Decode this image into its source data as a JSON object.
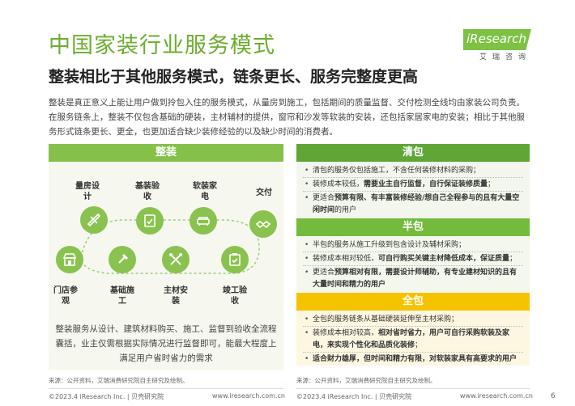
{
  "header": {
    "title": "中国家装行业服务模式",
    "subtitle": "整装相比于其他服务模式，链条更长、服务完整度更高"
  },
  "logo": {
    "text": "iResearch",
    "cn": "艾瑞咨询"
  },
  "intro": "整装是真正意义上能让用户做到拎包入住的服务模式，从量房到施工，包括期间的质量监督、交付检测全线均由家装公司负责。在服务链条上，整装不仅包含基础的硬装，主材辅材的提供，窗帘和沙发等软装的安装，还包括家居家电的安装；相比于其他服务形式链条更长、更全，也更加适合缺少装修经验的以及缺少时间的消费者。",
  "zhengzhuang": {
    "header": "整装",
    "top_nodes": [
      {
        "label": "量房设计",
        "icon": "ruler-pencil-icon"
      },
      {
        "label": "基装验收",
        "icon": "checklist-icon"
      },
      {
        "label": "软装家电",
        "icon": "sofa-icon"
      },
      {
        "label": "交付",
        "icon": "handshake-icon"
      }
    ],
    "bottom_nodes": [
      {
        "label": "门店参观",
        "icon": "store-icon"
      },
      {
        "label": "基础施工",
        "icon": "hammer-icon"
      },
      {
        "label": "主材安装",
        "icon": "tools-icon"
      },
      {
        "label": "竣工验收",
        "icon": "clipboard-check-icon"
      }
    ],
    "note": "整装服务从设计、建筑材料购买、施工、监督到验收全流程囊括，业主仅需根据实际情况进行监督即可，能最大程度上满足用户省时省力的需求"
  },
  "qingbao": {
    "header": "清包",
    "items": [
      {
        "pre": "清包的服务仅包括施工，不含任何装修材料的采购；",
        "bold": "",
        "post": ""
      },
      {
        "pre": "装修成本较低，",
        "bold": "需要业主自行监督，自行保证装修质量",
        "post": "；"
      },
      {
        "pre": "更适合",
        "bold": "预算有限、有丰富装修经验/想自己全程参与的且有大量空闲时间",
        "post": "的用户"
      }
    ]
  },
  "banbao": {
    "header": "半包",
    "items": [
      {
        "pre": "半包的服务从施工升级到包含设计及辅材采购；",
        "bold": "",
        "post": ""
      },
      {
        "pre": "装修成本相对较低，",
        "bold": "可自行购买关键主材降低成本，保证质量",
        "post": "；"
      },
      {
        "pre": "更适合",
        "bold": "预算相对有限，需要设计师辅助，有专业建材知识的且有大量时间和精力的用户",
        "post": ""
      }
    ]
  },
  "quanbao": {
    "header": "全包",
    "items": [
      {
        "pre": "全包的服务链条从基础硬装延伸至主材采购；",
        "bold": "",
        "post": ""
      },
      {
        "pre": "装修成本相对较高，",
        "bold": "相对省时省力，用户可自行采购软装及家电，来实现个性化和品质化装修",
        "post": "；"
      },
      {
        "pre": "",
        "bold": "适合财力雄厚，但时间和精力有限，对软装家具有高要求的用户",
        "post": ""
      }
    ]
  },
  "footer": {
    "source_left": "来源：公开资料，艾瑞消费研究院自主研究及绘制。",
    "source_right": "来源：公开资料，艾瑞消费研究院自主研究及绘制。",
    "copy_left": "©2023.4 iResearch Inc. | 贝壳研究院",
    "url_left": "www.iresearch.com.cn",
    "copy_right": "©2023.4 iResearch Inc. | 贝壳研究院",
    "url_right": "www.iresearch.com.cn",
    "page": "6"
  }
}
